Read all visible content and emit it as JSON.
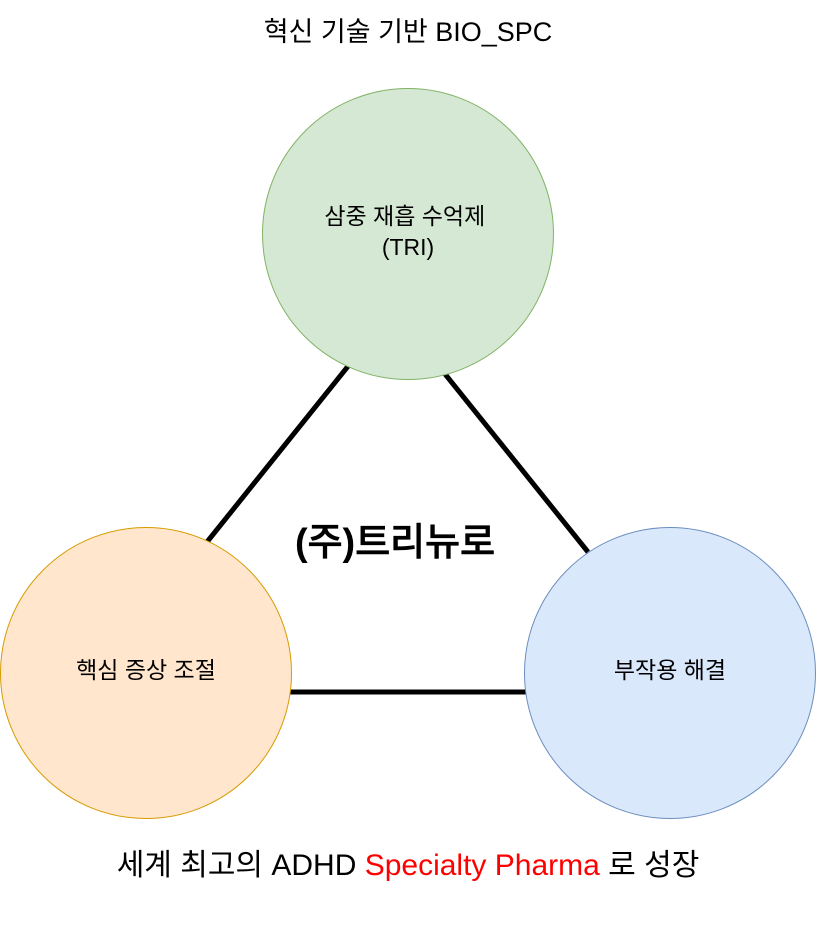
{
  "diagram": {
    "top_title": "혁신 기술 기반 BIO_SPC",
    "center_title": "(주)트리뉴로",
    "nodes": [
      {
        "id": "top",
        "label_lines": [
          "삼중 재흡 수억제",
          "(TRI)"
        ],
        "fill": "#d5e8d4",
        "stroke": "#82b366"
      },
      {
        "id": "left",
        "label_lines": [
          "핵심 증상 조절"
        ],
        "fill": "#ffe6cc",
        "stroke": "#d79b00"
      },
      {
        "id": "right",
        "label_lines": [
          "부작용 해결"
        ],
        "fill": "#dae8fc",
        "stroke": "#6c8ebf"
      }
    ],
    "bottom_line": {
      "before": "세계 최고의 ADHD ",
      "highlight": "Specialty Pharma",
      "after": " 로 성장",
      "highlight_color": "#ff0000"
    },
    "connector_color": "#000000"
  }
}
